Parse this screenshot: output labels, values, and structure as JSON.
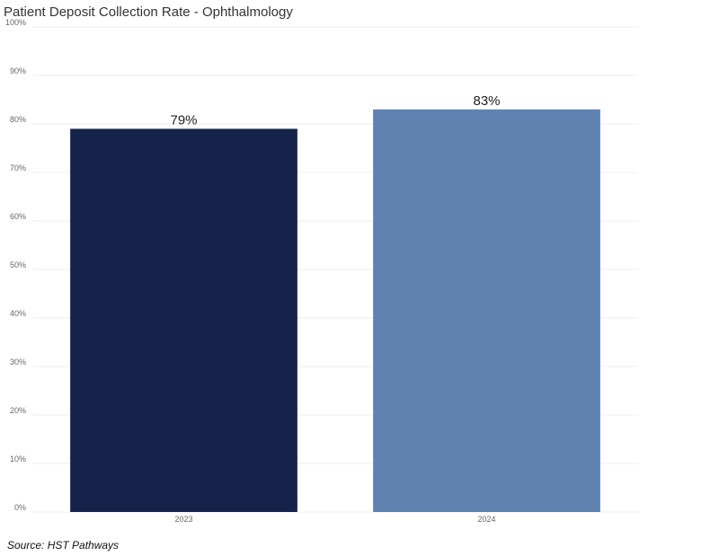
{
  "chart_data": {
    "type": "bar",
    "title": "Patient Deposit Collection Rate - Ophthalmology",
    "categories": [
      "2023",
      "2024"
    ],
    "values": [
      79,
      83
    ],
    "data_labels": [
      "79%",
      "83%"
    ],
    "colors": [
      "#15224a",
      "#5f82b1"
    ],
    "ylim": [
      0,
      100
    ],
    "y_ticks": [
      0,
      10,
      20,
      30,
      40,
      50,
      60,
      70,
      80,
      90,
      100
    ],
    "y_tick_labels": [
      "0%",
      "10%",
      "20%",
      "30%",
      "40%",
      "50%",
      "60%",
      "70%",
      "80%",
      "90%",
      "100%"
    ],
    "grid": true,
    "legend": "none"
  },
  "source": "Source: HST Pathways"
}
